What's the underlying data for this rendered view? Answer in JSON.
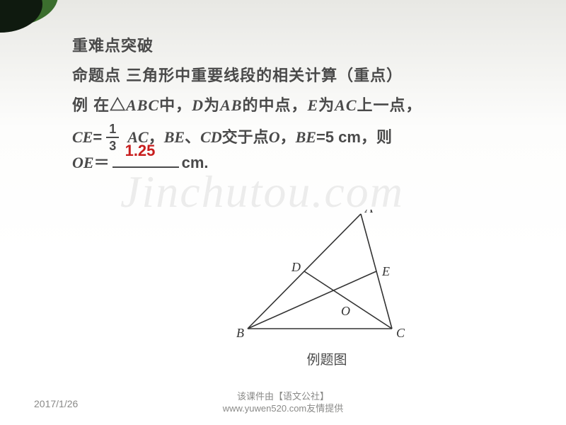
{
  "slide": {
    "background_gradient": [
      "#e8e8e4",
      "#fdfdfc",
      "#ffffff"
    ],
    "text_color": "#4a4a4a",
    "accent_color": "#3b6e2e"
  },
  "heading1": "重难点突破",
  "heading2": "命题点  三角形中重要线段的相关计算（重点）",
  "line3_pre": "例  在△",
  "tri": "ABC",
  "line3_mid1": "中，",
  "D": "D",
  "line3_mid2": "为",
  "AB": "AB",
  "line3_mid3": "的中点，",
  "E": "E",
  "line3_mid4": "为",
  "AC": "AC",
  "line3_tail": "上一点，",
  "CE": "CE",
  "eq": "=",
  "frac": {
    "num": "1",
    "den": "3"
  },
  "AC2": "AC",
  "comma1": "，",
  "BE": "BE",
  "dot": "、",
  "CD": "CD",
  "mid5": "交于点",
  "O": "O",
  "comma2": "，",
  "BE2": "BE",
  "eq5": "=5 cm，则",
  "OE": "OE",
  "eqsym": "＝",
  "answer": "1.25",
  "unit": "cm.",
  "watermark": "Jinchutou.com",
  "figure": {
    "caption": "例题图",
    "labels": {
      "A": "A",
      "B": "B",
      "C": "C",
      "D": "D",
      "E": "E",
      "O": "O"
    },
    "points": {
      "A": [
        178,
        6
      ],
      "B": [
        18,
        168
      ],
      "C": [
        222,
        168
      ],
      "D": [
        98,
        87
      ],
      "E": [
        200,
        87
      ],
      "O": [
        154,
        131
      ]
    },
    "stroke": "#333333",
    "stroke_width": 1.6,
    "label_fontsize": 18
  },
  "footer": {
    "date": "2017/1/26",
    "credit_line1": "该课件由【语文公社】",
    "credit_line2": "www.yuwen520.com友情提供"
  }
}
